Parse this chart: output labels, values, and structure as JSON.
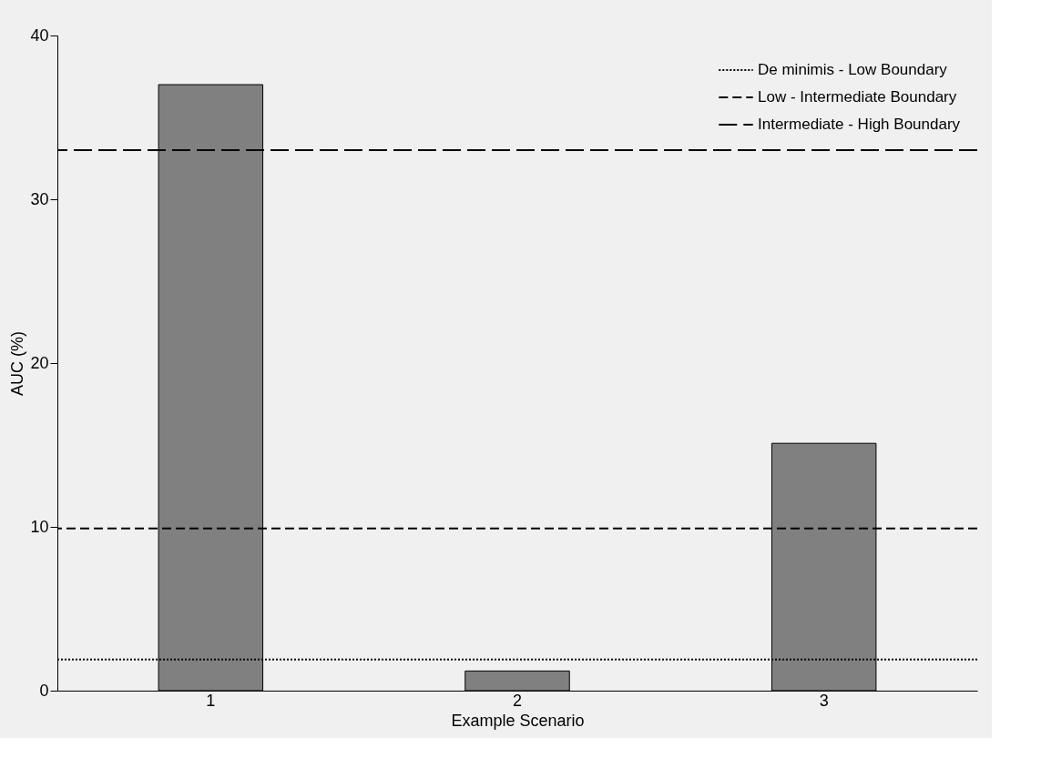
{
  "chart_data": {
    "type": "bar",
    "xlabel": "Example Scenario",
    "ylabel": "AUC (%)",
    "categories": [
      "1",
      "2",
      "3"
    ],
    "values": [
      37,
      1.2,
      15.1
    ],
    "color": "#808080",
    "ylim": [
      0,
      40
    ],
    "yticks": [
      0,
      10,
      20,
      30,
      40
    ],
    "grid": false,
    "legend": "top right",
    "ref_lines": [
      {
        "axis": "y",
        "value": 1.9,
        "label": "De minimis - Low Boundary",
        "line_style": "dotted",
        "color": "#000000"
      },
      {
        "axis": "y",
        "value": 9.9,
        "label": "Low - Intermediate Boundary",
        "line_style": "dashed",
        "color": "#000000"
      },
      {
        "axis": "y",
        "value": 33,
        "label": "Intermediate - High Boundary",
        "line_style": "longdash",
        "color": "#000000"
      }
    ]
  }
}
